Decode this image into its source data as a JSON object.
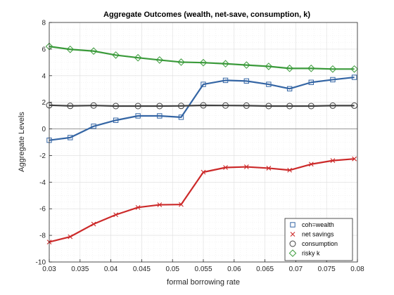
{
  "chart_data": {
    "type": "line",
    "title": "Aggregate Outcomes (wealth, net-save, consumption, k)",
    "xlabel": "formal borrowing rate",
    "ylabel": "Aggregate Levels",
    "xlim": [
      0.03,
      0.08
    ],
    "ylim": [
      -10,
      8
    ],
    "xticks": [
      "0.03",
      "0.035",
      "0.04",
      "0.045",
      "0.05",
      "0.055",
      "0.06",
      "0.065",
      "0.07",
      "0.075",
      "0.08"
    ],
    "yticks": [
      "-10",
      "-8",
      "-6",
      "-4",
      "-2",
      "0",
      "2",
      "4",
      "6",
      "8"
    ],
    "grid": true,
    "legend_position": "bottom-right",
    "x": [
      0.03,
      0.0334,
      0.0372,
      0.0408,
      0.0444,
      0.0479,
      0.0514,
      0.055,
      0.0586,
      0.062,
      0.0656,
      0.069,
      0.0725,
      0.076,
      0.0795
    ],
    "series": [
      {
        "name": "coh=wealth",
        "color": "#3465a4",
        "marker": "square",
        "values": [
          -0.85,
          -0.65,
          0.2,
          0.65,
          0.98,
          0.98,
          0.88,
          3.35,
          3.65,
          3.6,
          3.35,
          3.02,
          3.5,
          3.7,
          3.88
        ]
      },
      {
        "name": "net savings",
        "color": "#cc2a2a",
        "marker": "x",
        "values": [
          -8.5,
          -8.1,
          -7.15,
          -6.45,
          -5.9,
          -5.7,
          -5.68,
          -3.25,
          -2.9,
          -2.85,
          -2.95,
          -3.1,
          -2.65,
          -2.38,
          -2.25
        ]
      },
      {
        "name": "consumption",
        "color": "#404040",
        "marker": "circle",
        "values": [
          1.78,
          1.73,
          1.76,
          1.72,
          1.72,
          1.72,
          1.73,
          1.77,
          1.76,
          1.75,
          1.72,
          1.72,
          1.72,
          1.75,
          1.75
        ]
      },
      {
        "name": "risky k",
        "color": "#3a9a3a",
        "marker": "diamond",
        "values": [
          6.2,
          5.98,
          5.85,
          5.55,
          5.35,
          5.18,
          5.02,
          4.98,
          4.9,
          4.8,
          4.7,
          4.55,
          4.55,
          4.5,
          4.5
        ]
      }
    ]
  }
}
